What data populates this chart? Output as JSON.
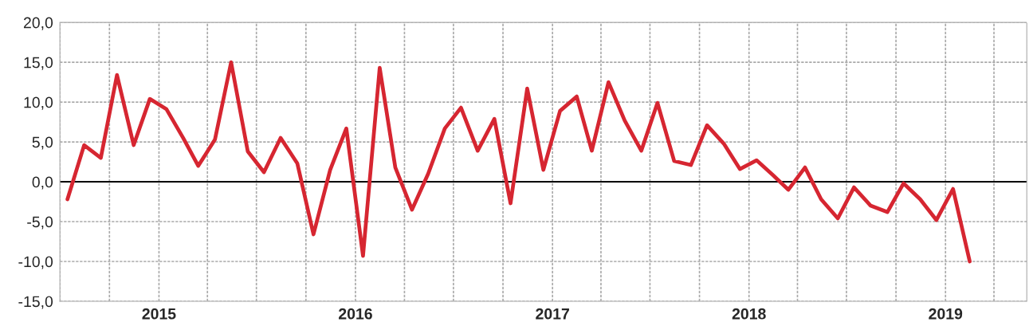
{
  "chart_data": {
    "type": "line",
    "x": [
      "2014-07-15",
      "2014-08-15",
      "2014-09-15",
      "2014-10-15",
      "2014-11-15",
      "2014-12-15",
      "2015-01-15",
      "2015-02-15",
      "2015-03-15",
      "2015-04-15",
      "2015-05-15",
      "2015-06-15",
      "2015-07-15",
      "2015-08-15",
      "2015-09-15",
      "2015-10-15",
      "2015-11-15",
      "2015-12-15",
      "2016-01-15",
      "2016-02-15",
      "2016-03-15",
      "2016-04-15",
      "2016-05-15",
      "2016-06-15",
      "2016-07-15",
      "2016-08-15",
      "2016-09-15",
      "2016-10-15",
      "2016-11-15",
      "2016-12-15",
      "2017-01-15",
      "2017-02-15",
      "2017-03-15",
      "2017-04-15",
      "2017-05-15",
      "2017-06-15",
      "2017-07-15",
      "2017-08-15",
      "2017-09-15",
      "2017-10-15",
      "2017-11-15",
      "2017-12-15",
      "2018-01-15",
      "2018-02-15",
      "2018-03-15",
      "2018-04-15",
      "2018-05-15",
      "2018-06-15",
      "2018-07-15",
      "2018-08-15",
      "2018-09-15",
      "2018-10-15",
      "2018-11-15",
      "2018-12-15",
      "2019-01-15",
      "2019-02-15"
    ],
    "series": [
      {
        "color": "#d62631",
        "values": [
          -2.2,
          4.6,
          3.0,
          13.4,
          4.6,
          10.4,
          9.1,
          5.5,
          2.0,
          5.3,
          15.0,
          3.8,
          1.2,
          5.5,
          2.3,
          -6.6,
          1.5,
          6.7,
          -9.3,
          14.3,
          1.8,
          -3.5,
          1.0,
          6.7,
          9.3,
          3.9,
          7.9,
          -2.7,
          11.7,
          1.5,
          8.9,
          10.7,
          3.9,
          12.5,
          7.7,
          3.9,
          9.9,
          2.6,
          2.1,
          7.1,
          4.8,
          1.6,
          2.7,
          0.8,
          -1.0,
          1.8,
          -2.2,
          -4.6,
          -0.7,
          -3.0,
          -3.8,
          -0.2,
          -2.2,
          -4.8,
          -0.9,
          -10.0
        ]
      }
    ],
    "xlim": [
      "2014-07-01",
      "2019-06-01"
    ],
    "xticks": [
      {
        "value": "2014-07-01",
        "label": null
      },
      {
        "value": "2014-10-01",
        "label": null
      },
      {
        "value": "2015-01-01",
        "label": "2015"
      },
      {
        "value": "2015-04-01",
        "label": null
      },
      {
        "value": "2015-07-01",
        "label": null
      },
      {
        "value": "2015-10-01",
        "label": null
      },
      {
        "value": "2016-01-01",
        "label": "2016"
      },
      {
        "value": "2016-04-01",
        "label": null
      },
      {
        "value": "2016-07-01",
        "label": null
      },
      {
        "value": "2016-10-01",
        "label": null
      },
      {
        "value": "2017-01-01",
        "label": "2017"
      },
      {
        "value": "2017-04-01",
        "label": null
      },
      {
        "value": "2017-07-01",
        "label": null
      },
      {
        "value": "2017-10-01",
        "label": null
      },
      {
        "value": "2018-01-01",
        "label": "2018"
      },
      {
        "value": "2018-04-01",
        "label": null
      },
      {
        "value": "2018-07-01",
        "label": null
      },
      {
        "value": "2018-10-01",
        "label": null
      },
      {
        "value": "2019-01-01",
        "label": "2019"
      },
      {
        "value": "2019-04-01",
        "label": null
      }
    ],
    "ylim": [
      -15,
      20
    ],
    "yticks": [
      {
        "value": -15,
        "label": "-15,0"
      },
      {
        "value": -10,
        "label": "-10,0"
      },
      {
        "value": -5,
        "label": "-5,0"
      },
      {
        "value": 0,
        "label": "0,0"
      },
      {
        "value": 5,
        "label": "5,0"
      },
      {
        "value": 10,
        "label": "10,0"
      },
      {
        "value": 15,
        "label": "15,0"
      },
      {
        "value": 20,
        "label": "20,0"
      }
    ],
    "ref_lines": [
      {
        "axis": "y",
        "value": 0,
        "color": "#000000",
        "line_style": "solid"
      }
    ],
    "grid": true,
    "legend": false,
    "marker": "none",
    "line_style": "solid"
  }
}
